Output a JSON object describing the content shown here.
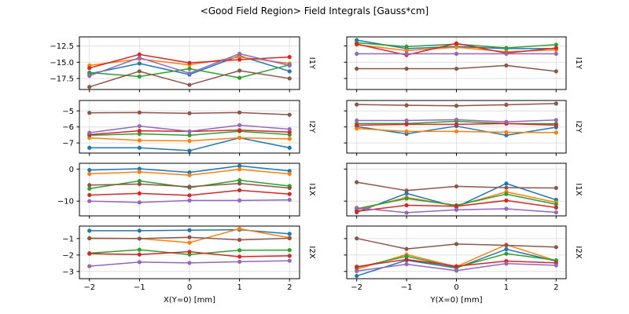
{
  "title": "<Good Field Region> Field Integrals [Gauss*cm]",
  "chart_data": {
    "type": "line",
    "suptitle": "<Good Field Region> Field Integrals [Gauss*cm]",
    "legend": "none",
    "grid": true,
    "grid_color": "#e0e0e0",
    "marker": "o",
    "x": [
      -2,
      -1,
      0,
      1,
      2
    ],
    "xlim": [
      -2.2,
      2.2
    ],
    "xticks": [
      -2,
      -1,
      0,
      1,
      2
    ],
    "xtick_labels": [
      "−2",
      "−1",
      "0",
      "1",
      "2"
    ],
    "palette": {
      "blue": "#1f77b4",
      "orange": "#ff7f0e",
      "green": "#2ca02c",
      "red": "#d62728",
      "purple": "#9467bd",
      "brown": "#8c564b"
    },
    "columns": [
      {
        "xlabel": "X(Y=0) [mm]"
      },
      {
        "xlabel": "Y(X=0) [mm]"
      }
    ],
    "rows": [
      {
        "label": "I1Y",
        "ylim": [
          -19.2,
          -11.1
        ],
        "yticks": [
          -12.5,
          -15.0,
          -17.5
        ],
        "ytick_labels": [
          "−12.5",
          "−15.0",
          "−17.5"
        ]
      },
      {
        "label": "I2Y",
        "ylim": [
          -7.63,
          -4.35
        ],
        "yticks": [
          -5,
          -6,
          -7
        ],
        "ytick_labels": [
          "−5",
          "−6",
          "−7"
        ]
      },
      {
        "label": "I1X",
        "ylim": [
          -14.6,
          1.8
        ],
        "yticks": [
          0,
          -10
        ],
        "ytick_labels": [
          "0",
          "−10"
        ]
      },
      {
        "label": "I2X",
        "ylim": [
          -3.44,
          -0.24
        ],
        "yticks": [
          -1,
          -2,
          -3
        ],
        "ytick_labels": [
          "−1",
          "−2",
          "−3"
        ]
      }
    ],
    "panels": [
      {
        "r": 0,
        "c": 0,
        "series": [
          {
            "color": "blue",
            "values": [
              -16.8,
              -15.2,
              -16.9,
              -14.0,
              -16.4
            ]
          },
          {
            "color": "orange",
            "values": [
              -15.5,
              -14.5,
              -15.4,
              -14.2,
              -15.2
            ]
          },
          {
            "color": "green",
            "values": [
              -16.6,
              -17.2,
              -16.0,
              -17.4,
              -15.4
            ]
          },
          {
            "color": "red",
            "values": [
              -15.9,
              -13.8,
              -15.1,
              -14.6,
              -14.2
            ]
          },
          {
            "color": "purple",
            "values": [
              -17.1,
              -14.3,
              -16.7,
              -13.7,
              -15.5
            ]
          },
          {
            "color": "brown",
            "values": [
              -18.8,
              -16.4,
              -18.5,
              -16.3,
              -17.5
            ]
          }
        ]
      },
      {
        "r": 0,
        "c": 1,
        "series": [
          {
            "color": "blue",
            "values": [
              -11.6,
              -12.9,
              -12.6,
              -12.9,
              -12.9
            ]
          },
          {
            "color": "orange",
            "values": [
              -12.3,
              -13.2,
              -12.7,
              -13.4,
              -13.1
            ]
          },
          {
            "color": "green",
            "values": [
              -12.0,
              -12.6,
              -12.2,
              -12.8,
              -12.3
            ]
          },
          {
            "color": "red",
            "values": [
              -12.2,
              -13.9,
              -12.1,
              -13.6,
              -12.8
            ]
          },
          {
            "color": "purple",
            "values": [
              -13.7,
              -13.7,
              -13.7,
              -13.7,
              -13.7
            ]
          },
          {
            "color": "brown",
            "values": [
              -16.0,
              -16.0,
              -16.0,
              -15.5,
              -16.4
            ]
          }
        ]
      },
      {
        "r": 1,
        "c": 0,
        "series": [
          {
            "color": "blue",
            "values": [
              -7.3,
              -7.3,
              -7.48,
              -6.68,
              -7.3
            ]
          },
          {
            "color": "orange",
            "values": [
              -6.68,
              -6.84,
              -6.87,
              -6.68,
              -6.74
            ]
          },
          {
            "color": "green",
            "values": [
              -6.52,
              -6.43,
              -6.52,
              -6.27,
              -6.48
            ]
          },
          {
            "color": "red",
            "values": [
              -6.48,
              -6.24,
              -6.28,
              -6.2,
              -6.32
            ]
          },
          {
            "color": "purple",
            "values": [
              -6.36,
              -5.95,
              -6.28,
              -5.89,
              -6.14
            ]
          },
          {
            "color": "brown",
            "values": [
              -5.12,
              -5.1,
              -5.15,
              -5.1,
              -5.24
            ]
          }
        ]
      },
      {
        "r": 1,
        "c": 1,
        "series": [
          {
            "color": "blue",
            "values": [
              -5.98,
              -6.43,
              -5.95,
              -6.52,
              -6.02
            ]
          },
          {
            "color": "orange",
            "values": [
              -6.1,
              -6.28,
              -6.28,
              -6.33,
              -6.35
            ]
          },
          {
            "color": "green",
            "values": [
              -5.79,
              -5.79,
              -5.65,
              -5.79,
              -5.8
            ]
          },
          {
            "color": "red",
            "values": [
              -5.89,
              -5.84,
              -5.84,
              -5.79,
              -5.89
            ]
          },
          {
            "color": "purple",
            "values": [
              -5.6,
              -5.6,
              -5.55,
              -5.68,
              -5.57
            ]
          },
          {
            "color": "brown",
            "values": [
              -4.6,
              -4.65,
              -4.68,
              -4.62,
              -4.54
            ]
          }
        ]
      },
      {
        "r": 2,
        "c": 0,
        "series": [
          {
            "color": "blue",
            "values": [
              -0.3,
              0.1,
              -1.05,
              1.0,
              -0.6
            ]
          },
          {
            "color": "orange",
            "values": [
              -1.5,
              -0.9,
              -1.9,
              -0.1,
              -1.5
            ]
          },
          {
            "color": "green",
            "values": [
              -6.1,
              -3.7,
              -5.8,
              -3.5,
              -5.3
            ]
          },
          {
            "color": "red",
            "values": [
              -8.1,
              -7.6,
              -8.2,
              -6.6,
              -7.8
            ]
          },
          {
            "color": "purple",
            "values": [
              -10.0,
              -10.4,
              -9.8,
              -9.8,
              -9.6
            ]
          },
          {
            "color": "brown",
            "values": [
              -5.0,
              -4.7,
              -5.5,
              -4.5,
              -5.9
            ]
          }
        ]
      },
      {
        "r": 2,
        "c": 1,
        "series": [
          {
            "color": "blue",
            "values": [
              -13.5,
              -7.6,
              -11.8,
              -4.5,
              -9.6
            ]
          },
          {
            "color": "orange",
            "values": [
              -12.8,
              -8.8,
              -11.5,
              -7.1,
              -10.4
            ]
          },
          {
            "color": "green",
            "values": [
              -12.4,
              -9.2,
              -11.3,
              -7.8,
              -11.0
            ]
          },
          {
            "color": "red",
            "values": [
              -13.2,
              -11.3,
              -11.6,
              -9.8,
              -12.0
            ]
          },
          {
            "color": "purple",
            "values": [
              -12.1,
              -13.6,
              -12.7,
              -12.4,
              -13.5
            ]
          },
          {
            "color": "brown",
            "values": [
              -4.1,
              -6.7,
              -5.4,
              -5.8,
              -5.9
            ]
          }
        ]
      },
      {
        "r": 3,
        "c": 0,
        "series": [
          {
            "color": "blue",
            "values": [
              -0.52,
              -0.52,
              -0.49,
              -0.46,
              -0.71
            ]
          },
          {
            "color": "orange",
            "values": [
              -0.97,
              -1.0,
              -1.25,
              -0.4,
              -0.95
            ]
          },
          {
            "color": "green",
            "values": [
              -1.89,
              -1.68,
              -1.97,
              -1.71,
              -1.7
            ]
          },
          {
            "color": "red",
            "values": [
              -1.92,
              -1.97,
              -1.8,
              -2.1,
              -2.05
            ]
          },
          {
            "color": "purple",
            "values": [
              -2.68,
              -2.43,
              -2.48,
              -2.41,
              -2.35
            ]
          },
          {
            "color": "brown",
            "values": [
              -0.99,
              -1.0,
              -0.92,
              -1.08,
              -0.98
            ]
          }
        ]
      },
      {
        "r": 3,
        "c": 1,
        "series": [
          {
            "color": "blue",
            "values": [
              -3.27,
              -2.32,
              -2.79,
              -1.65,
              -2.37
            ]
          },
          {
            "color": "orange",
            "values": [
              -2.87,
              -1.97,
              -2.71,
              -1.37,
              -2.35
            ]
          },
          {
            "color": "green",
            "values": [
              -2.76,
              -2.08,
              -2.75,
              -1.92,
              -2.32
            ]
          },
          {
            "color": "red",
            "values": [
              -2.71,
              -2.27,
              -2.68,
              -2.37,
              -2.48
            ]
          },
          {
            "color": "purple",
            "values": [
              -2.98,
              -2.56,
              -2.95,
              -2.52,
              -2.63
            ]
          },
          {
            "color": "brown",
            "values": [
              -0.99,
              -1.63,
              -1.33,
              -1.41,
              -1.52
            ]
          }
        ]
      }
    ]
  }
}
